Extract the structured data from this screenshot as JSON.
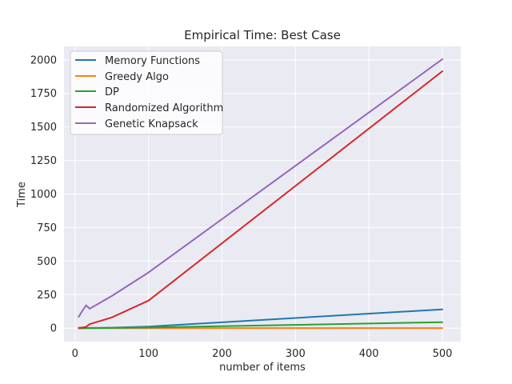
{
  "chart_data": {
    "type": "line",
    "title": "Empirical Time: Best Case",
    "xlabel": "number of items",
    "ylabel": "Time",
    "xlim": [
      -15,
      525
    ],
    "ylim": [
      -100,
      2100
    ],
    "xticks": [
      0,
      100,
      200,
      300,
      400,
      500
    ],
    "yticks": [
      0,
      250,
      500,
      750,
      1000,
      1250,
      1500,
      1750,
      2000
    ],
    "grid": true,
    "legend_position": "upper-left",
    "series": [
      {
        "name": "Memory Functions",
        "color": "#1f77b4",
        "x": [
          5,
          10,
          15,
          20,
          50,
          100,
          500
        ],
        "y": [
          0.5,
          1,
          1.5,
          2,
          4,
          12,
          140
        ]
      },
      {
        "name": "Greedy Algo",
        "color": "#ff7f0e",
        "x": [
          5,
          10,
          15,
          20,
          50,
          100,
          500
        ],
        "y": [
          0,
          0,
          0,
          0,
          0.2,
          0.4,
          1
        ]
      },
      {
        "name": "DP",
        "color": "#2ca02c",
        "x": [
          5,
          10,
          15,
          20,
          50,
          100,
          500
        ],
        "y": [
          0.2,
          0.4,
          0.8,
          1,
          2,
          5,
          45
        ]
      },
      {
        "name": "Randomized Algorithm",
        "color": "#d62728",
        "x": [
          5,
          10,
          15,
          20,
          50,
          100,
          500
        ],
        "y": [
          2,
          5,
          10,
          30,
          80,
          205,
          1915
        ]
      },
      {
        "name": "Genetic Knapsack",
        "color": "#9467bd",
        "x": [
          5,
          10,
          15,
          20,
          50,
          100,
          500
        ],
        "y": [
          85,
          130,
          170,
          145,
          240,
          415,
          2005
        ]
      }
    ]
  }
}
